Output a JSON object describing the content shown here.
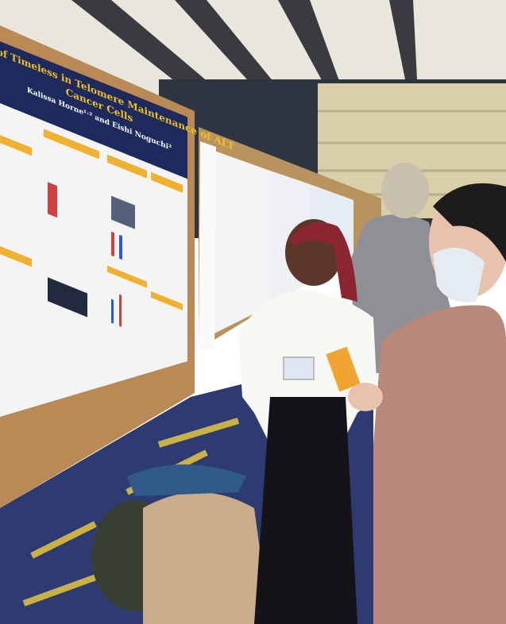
{
  "poster": {
    "title": [
      "Roles of Timeless in Telomere Maintenance of ALT",
      "Cancer Cells"
    ],
    "authors": "Kalissa Horne¹˒² and Eishi Noguchi²"
  }
}
